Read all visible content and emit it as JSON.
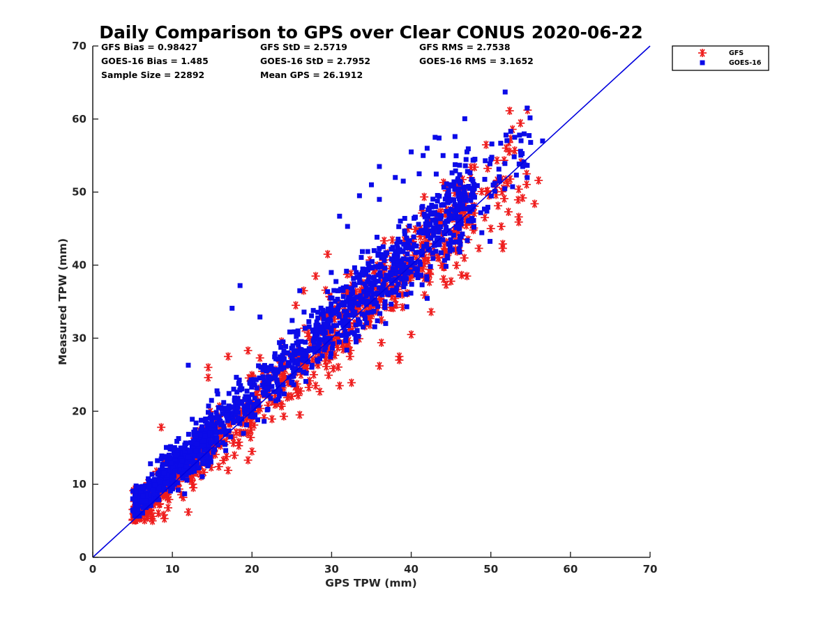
{
  "chart_data": {
    "type": "scatter",
    "title": "Daily Comparison to GPS over Clear CONUS 2020-06-22",
    "xlabel": "GPS TPW (mm)",
    "ylabel": "Measured TPW (mm)",
    "xlim": [
      0,
      70
    ],
    "ylim": [
      0,
      70
    ],
    "xticks": [
      "0",
      "10",
      "20",
      "30",
      "40",
      "50",
      "60",
      "70"
    ],
    "yticks": [
      "0",
      "10",
      "20",
      "30",
      "40",
      "50",
      "60",
      "70"
    ],
    "stats": [
      "GFS Bias = 0.98427",
      "GFS StD = 2.5719",
      "GFS RMS = 2.7538",
      "GOES-16 Bias = 1.485",
      "GOES-16 StD = 2.7952",
      "GOES-16 RMS = 3.1652",
      "Sample Size = 22892",
      "Mean GPS = 26.1912"
    ],
    "legend_position": "outside top-right",
    "series": [
      {
        "name": "GFS",
        "marker": "asterisk",
        "color": "#ee1c1c",
        "bias": 0.98427,
        "std": 2.5719,
        "outliers": [
          [
            5.3,
            7.0
          ],
          [
            7.5,
            5.0
          ],
          [
            9.0,
            5.3
          ],
          [
            12.0,
            6.2
          ],
          [
            8.6,
            17.8
          ],
          [
            14.5,
            26.0
          ],
          [
            14.5,
            24.6
          ],
          [
            17.0,
            27.5
          ],
          [
            19.5,
            28.3
          ],
          [
            21.0,
            27.3
          ],
          [
            17.0,
            11.9
          ],
          [
            19.5,
            13.3
          ],
          [
            20.0,
            14.5
          ],
          [
            24.0,
            19.3
          ],
          [
            26.0,
            19.5
          ],
          [
            25.5,
            34.5
          ],
          [
            26.5,
            36.5
          ],
          [
            28.0,
            38.5
          ],
          [
            29.5,
            41.5
          ],
          [
            28.0,
            23.5
          ],
          [
            31.0,
            23.5
          ],
          [
            32.5,
            23.9
          ],
          [
            36.0,
            26.2
          ],
          [
            38.5,
            27.0
          ],
          [
            40.0,
            30.5
          ],
          [
            38.5,
            27.5
          ],
          [
            42.5,
            33.6
          ],
          [
            45.0,
            37.8
          ],
          [
            47.0,
            38.5
          ],
          [
            48.5,
            42.3
          ],
          [
            51.5,
            42.3
          ],
          [
            51.5,
            42.9
          ],
          [
            53.5,
            46.6
          ],
          [
            53.5,
            50.4
          ],
          [
            54.0,
            49.2
          ],
          [
            54.5,
            52.5
          ],
          [
            55.5,
            48.4
          ],
          [
            56.0,
            51.6
          ],
          [
            52.5,
            57.3
          ],
          [
            53.0,
            55.7
          ],
          [
            53.5,
            45.9
          ],
          [
            50.0,
            45.0
          ],
          [
            47.5,
            53.4
          ]
        ]
      },
      {
        "name": "GOES-16",
        "marker": "square",
        "color": "#0b0be8",
        "bias": 1.485,
        "std": 2.7952,
        "outliers": [
          [
            51.8,
            63.7
          ],
          [
            52.5,
            58.3
          ],
          [
            55.0,
            56.8
          ],
          [
            56.5,
            57.0
          ],
          [
            54.0,
            53.5
          ],
          [
            45.5,
            57.6
          ],
          [
            43.5,
            57.4
          ],
          [
            40.0,
            55.5
          ],
          [
            36.0,
            53.5
          ],
          [
            38.0,
            52.0
          ],
          [
            31.0,
            46.7
          ],
          [
            26.0,
            36.5
          ],
          [
            21.0,
            32.9
          ],
          [
            18.5,
            37.2
          ],
          [
            17.5,
            34.1
          ],
          [
            12.0,
            26.3
          ],
          [
            12.5,
            18.9
          ],
          [
            32.0,
            45.3
          ],
          [
            36.0,
            49.0
          ],
          [
            39.0,
            51.5
          ],
          [
            48.0,
            54.5
          ],
          [
            50.0,
            54.5
          ],
          [
            35.0,
            51.0
          ],
          [
            33.5,
            49.5
          ],
          [
            42.0,
            56.0
          ],
          [
            53.0,
            57.5
          ],
          [
            43.0,
            57.5
          ],
          [
            41.5,
            55.0
          ],
          [
            41.0,
            52.5
          ],
          [
            44.0,
            55.0
          ],
          [
            47.0,
            55.5
          ]
        ]
      }
    ],
    "reference_line": {
      "name": "1:1",
      "x": [
        0,
        70
      ],
      "y": [
        0,
        70
      ],
      "color": "#0000dd"
    }
  }
}
